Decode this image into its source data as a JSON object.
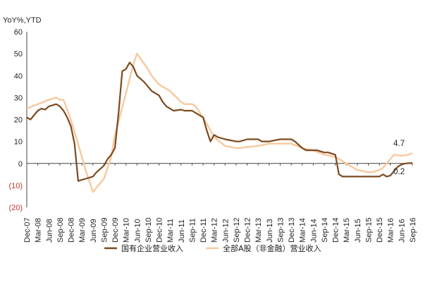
{
  "chart_data": {
    "type": "line",
    "ylabel": "YoY%,YTD",
    "ylim": [
      -20,
      60
    ],
    "yticks": [
      -20,
      -10,
      0,
      10,
      20,
      30,
      40,
      50,
      60
    ],
    "ytick_labels": [
      "(20)",
      "(10)",
      "0",
      "10",
      "20",
      "30",
      "40",
      "50",
      "60"
    ],
    "x_start": "Dec-07",
    "x_end": "Sep-16",
    "xtick_labels": [
      "Dec-07",
      "Mar-08",
      "Jun-08",
      "Sep-08",
      "Dec-08",
      "Mar-09",
      "Jun-09",
      "Sep-09",
      "Dec-09",
      "Mar-10",
      "Jun-10",
      "Sep-10",
      "Dec-10",
      "Mar-11",
      "Jun-11",
      "Sep-11",
      "Dec-11",
      "Mar-12",
      "Jun-12",
      "Sep-12",
      "Dec-12",
      "Mar-13",
      "Jun-13",
      "Sep-13",
      "Dec-13",
      "Mar-14",
      "Jun-14",
      "Sep-14",
      "Dec-14",
      "Mar-15",
      "Jun-15",
      "Sep-15",
      "Dec-15",
      "Mar-16",
      "Jun-16",
      "Sep-16"
    ],
    "series": [
      {
        "name": "国有企业营业收入",
        "color": "#7b4a1e",
        "points": [
          [
            "Dec-07",
            21
          ],
          [
            "Jan-08",
            20
          ],
          [
            "Mar-08",
            24
          ],
          [
            "Apr-08",
            25
          ],
          [
            "May-08",
            24.5
          ],
          [
            "Jun-08",
            26
          ],
          [
            "Aug-08",
            27
          ],
          [
            "Sep-08",
            26
          ],
          [
            "Oct-08",
            24
          ],
          [
            "Nov-08",
            21
          ],
          [
            "Dec-08",
            17
          ],
          [
            "Jan-09",
            9
          ],
          [
            "Feb-09",
            -8
          ],
          [
            "Mar-09",
            -7.5
          ],
          [
            "Apr-09",
            -7
          ],
          [
            "Jun-09",
            -6
          ],
          [
            "Jul-09",
            -4
          ],
          [
            "Sep-09",
            -1
          ],
          [
            "Oct-09",
            2
          ],
          [
            "Nov-09",
            4
          ],
          [
            "Dec-09",
            7
          ],
          [
            "Jan-10",
            23
          ],
          [
            "Feb-10",
            42
          ],
          [
            "Mar-10",
            43
          ],
          [
            "Apr-10",
            46
          ],
          [
            "May-10",
            44
          ],
          [
            "Jun-10",
            40
          ],
          [
            "Aug-10",
            37
          ],
          [
            "Sep-10",
            35
          ],
          [
            "Oct-10",
            33
          ],
          [
            "Dec-10",
            31
          ],
          [
            "Jan-11",
            28
          ],
          [
            "Feb-11",
            26
          ],
          [
            "Mar-11",
            25
          ],
          [
            "Apr-11",
            24
          ],
          [
            "Jun-11",
            24.5
          ],
          [
            "Jul-11",
            24
          ],
          [
            "Sep-11",
            24
          ],
          [
            "Oct-11",
            23
          ],
          [
            "Dec-11",
            21
          ],
          [
            "Jan-12",
            15
          ],
          [
            "Feb-12",
            10
          ],
          [
            "Mar-12",
            13
          ],
          [
            "Apr-12",
            12
          ],
          [
            "Jun-12",
            11
          ],
          [
            "Sep-12",
            10
          ],
          [
            "Oct-12",
            10
          ],
          [
            "Dec-12",
            11
          ],
          [
            "Mar-13",
            11
          ],
          [
            "Apr-13",
            10
          ],
          [
            "Jun-13",
            10
          ],
          [
            "Sep-13",
            11
          ],
          [
            "Dec-13",
            11
          ],
          [
            "Jan-14",
            10
          ],
          [
            "Mar-14",
            7
          ],
          [
            "Apr-14",
            6
          ],
          [
            "Jun-14",
            6
          ],
          [
            "Jul-14",
            6
          ],
          [
            "Sep-14",
            5
          ],
          [
            "Oct-14",
            5
          ],
          [
            "Dec-14",
            4
          ],
          [
            "Jan-15",
            -5
          ],
          [
            "Feb-15",
            -6
          ],
          [
            "Mar-15",
            -6
          ],
          [
            "Jun-15",
            -6
          ],
          [
            "Sep-15",
            -6
          ],
          [
            "Oct-15",
            -6
          ],
          [
            "Dec-15",
            -6
          ],
          [
            "Jan-16",
            -5
          ],
          [
            "Feb-16",
            -6
          ],
          [
            "Mar-16",
            -5.5
          ],
          [
            "Apr-16",
            -3.5
          ],
          [
            "May-16",
            -1.5
          ],
          [
            "Jun-16",
            -0.5
          ],
          [
            "Jul-16",
            0
          ],
          [
            "Sep-16",
            0.2
          ]
        ]
      },
      {
        "name": "全部A股（非金融）营业收入",
        "color": "#f7c99d",
        "points": [
          [
            "Dec-07",
            25
          ],
          [
            "Mar-08",
            27
          ],
          [
            "Jun-08",
            29
          ],
          [
            "Aug-08",
            30
          ],
          [
            "Sep-08",
            29
          ],
          [
            "Oct-08",
            29
          ],
          [
            "Dec-08",
            20
          ],
          [
            "Mar-09",
            3
          ],
          [
            "Apr-09",
            -3
          ],
          [
            "Jun-09",
            -13
          ],
          [
            "Jul-09",
            -11
          ],
          [
            "Sep-09",
            -7
          ],
          [
            "Nov-09",
            3
          ],
          [
            "Dec-09",
            13
          ],
          [
            "Mar-10",
            32
          ],
          [
            "May-10",
            45
          ],
          [
            "Jun-10",
            50
          ],
          [
            "Sep-10",
            43
          ],
          [
            "Oct-10",
            40
          ],
          [
            "Dec-10",
            36
          ],
          [
            "Mar-11",
            33
          ],
          [
            "Jun-11",
            28
          ],
          [
            "Jul-11",
            27
          ],
          [
            "Sep-11",
            27
          ],
          [
            "Oct-11",
            26
          ],
          [
            "Dec-11",
            21
          ],
          [
            "Jan-12",
            18
          ],
          [
            "Mar-12",
            12
          ],
          [
            "Jun-12",
            8
          ],
          [
            "Sep-12",
            7
          ],
          [
            "Oct-12",
            7
          ],
          [
            "Dec-12",
            7.5
          ],
          [
            "Mar-13",
            8
          ],
          [
            "Jun-13",
            9
          ],
          [
            "Sep-13",
            9
          ],
          [
            "Dec-13",
            9
          ],
          [
            "Mar-14",
            7
          ],
          [
            "Jun-14",
            6
          ],
          [
            "Sep-14",
            4
          ],
          [
            "Dec-14",
            3
          ],
          [
            "Mar-15",
            0
          ],
          [
            "Jun-15",
            -3
          ],
          [
            "Sep-15",
            -4
          ],
          [
            "Oct-15",
            -4
          ],
          [
            "Dec-15",
            -3
          ],
          [
            "Jan-16",
            -2
          ],
          [
            "Mar-16",
            2
          ],
          [
            "Apr-16",
            4
          ],
          [
            "Jun-16",
            3.5
          ],
          [
            "Aug-16",
            4
          ],
          [
            "Sep-16",
            4.7
          ]
        ]
      }
    ],
    "end_labels": [
      "4.7",
      "0.2"
    ],
    "legend_position": "bottom",
    "grid": false
  }
}
